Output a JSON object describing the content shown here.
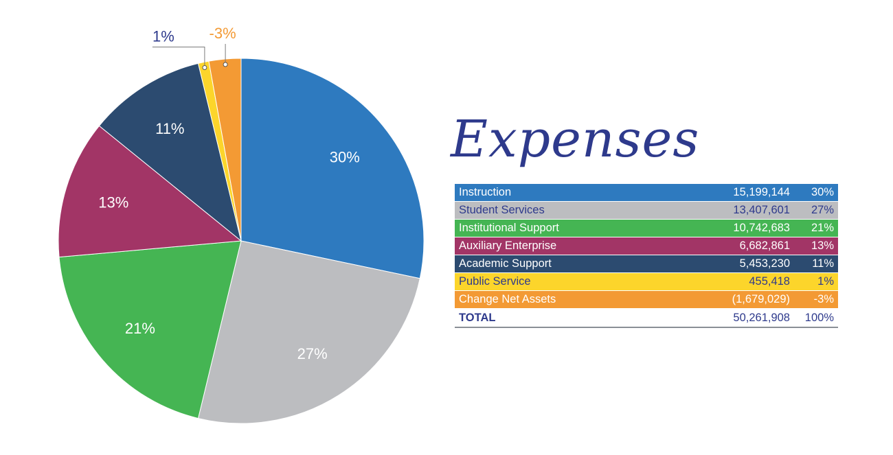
{
  "title": "Expenses",
  "chart_data": {
    "type": "pie",
    "title": "Expenses",
    "slices": [
      {
        "label": "Instruction",
        "amount": "15,199,144",
        "value": 30,
        "pct_label": "30%",
        "color": "#2e7abf",
        "row_text": "#ffffff"
      },
      {
        "label": "Student Services",
        "amount": "13,407,601",
        "value": 27,
        "pct_label": "27%",
        "color": "#bcbdc0",
        "row_text": "#2e3a8c"
      },
      {
        "label": "Institutional Support",
        "amount": "10,742,683",
        "value": 21,
        "pct_label": "21%",
        "color": "#45b553",
        "row_text": "#ffffff"
      },
      {
        "label": "Auxiliary Enterprise",
        "amount": "6,682,861",
        "value": 13,
        "pct_label": "13%",
        "color": "#a23566",
        "row_text": "#ffffff"
      },
      {
        "label": "Academic Support",
        "amount": "5,453,230",
        "value": 11,
        "pct_label": "11%",
        "color": "#2c4b70",
        "row_text": "#ffffff"
      },
      {
        "label": "Public Service",
        "amount": "455,418",
        "value": 1,
        "pct_label": "1%",
        "color": "#fcd52b",
        "row_text": "#2e3a8c"
      },
      {
        "label": "Change Net Assets",
        "amount": "(1,679,029)",
        "value": 3,
        "pct_label": "-3%",
        "color": "#f39a34",
        "row_text": "#ffffff"
      }
    ],
    "total": {
      "label": "TOTAL",
      "amount": "50,261,908",
      "pct_label": "100%"
    }
  }
}
